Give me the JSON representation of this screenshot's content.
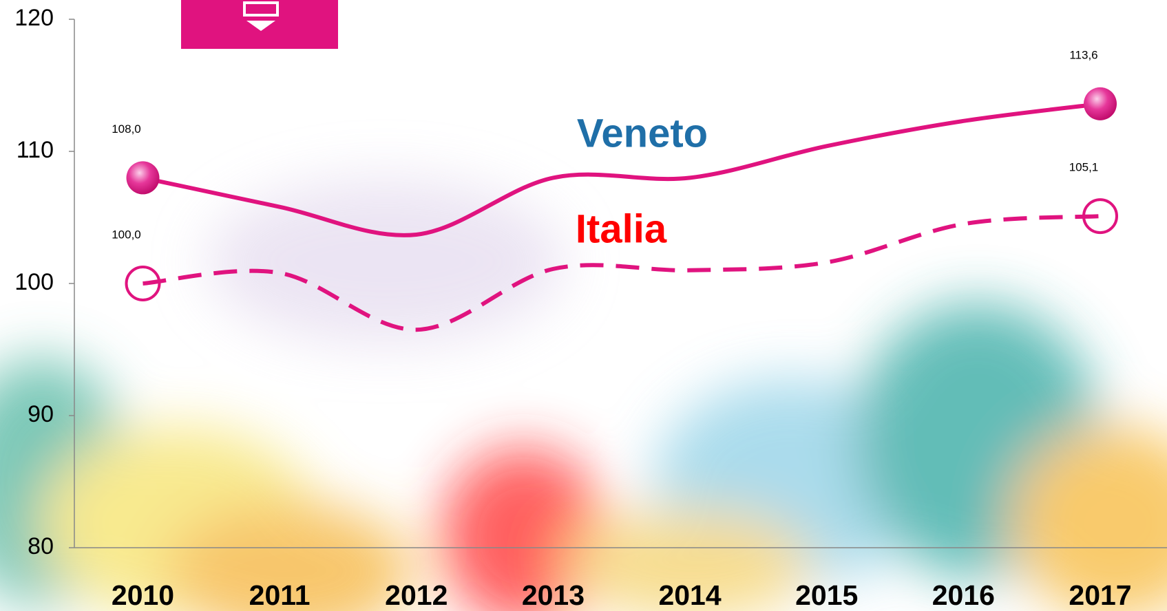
{
  "chart_data": {
    "type": "line",
    "x": [
      "2010",
      "2011",
      "2012",
      "2013",
      "2014",
      "2015",
      "2016",
      "2017"
    ],
    "ylim": [
      80,
      120
    ],
    "yticks": [
      80,
      90,
      100,
      110,
      120
    ],
    "series": [
      {
        "name": "Veneto",
        "color": "#e0137f",
        "label_color": "#1f6fa8",
        "dash": false,
        "filled_markers": true,
        "values": [
          108.0,
          105.8,
          103.7,
          108.0,
          108.0,
          110.4,
          112.3,
          113.6
        ],
        "value_labels": [
          "108,0",
          null,
          null,
          null,
          null,
          null,
          null,
          "113,6"
        ]
      },
      {
        "name": "Italia",
        "color": "#e0137f",
        "label_color": "#ff0000",
        "dash": true,
        "filled_markers": false,
        "values": [
          100.0,
          100.8,
          96.5,
          101.1,
          101.0,
          101.6,
          104.5,
          105.1
        ],
        "value_labels": [
          "100,0",
          null,
          null,
          null,
          null,
          null,
          null,
          "105,1"
        ]
      }
    ]
  }
}
